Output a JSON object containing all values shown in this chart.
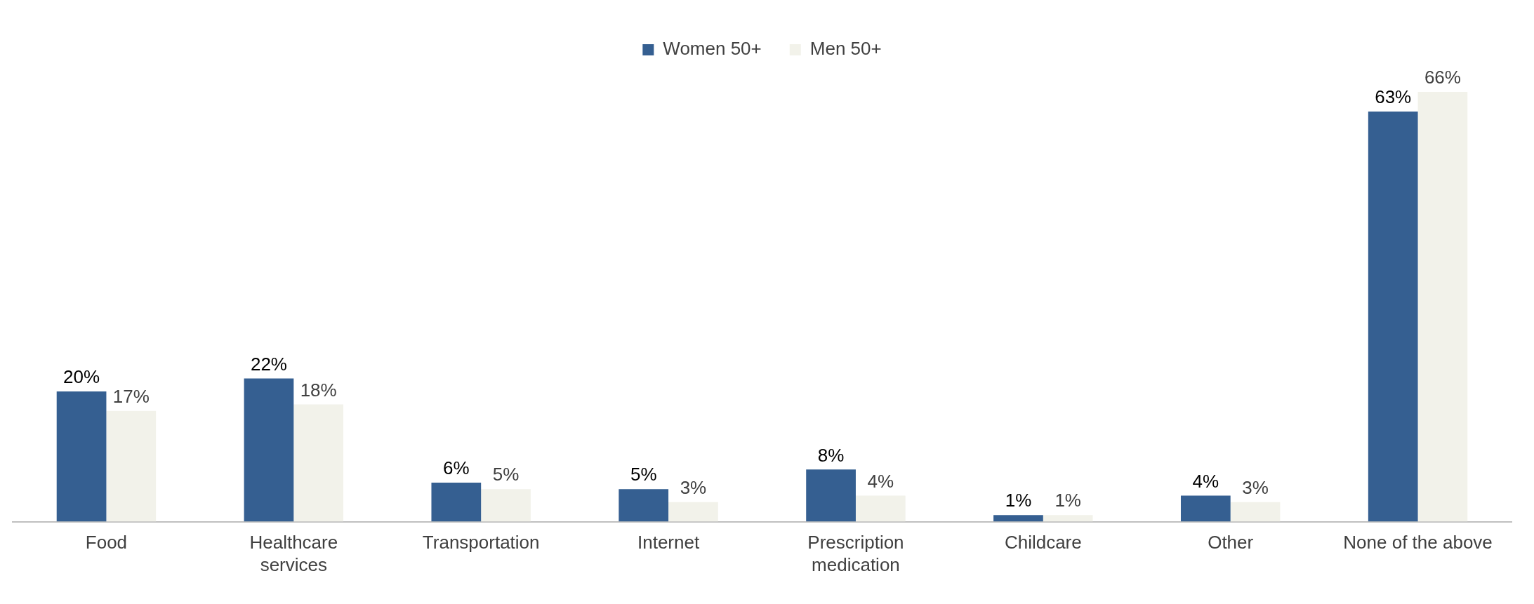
{
  "chart_data": {
    "type": "bar",
    "categories": [
      "Food",
      "Healthcare services",
      "Transportation",
      "Internet",
      "Prescription medication",
      "Childcare",
      "Other",
      "None of the above"
    ],
    "series": [
      {
        "name": "Women 50+",
        "color": "#355f91",
        "values": [
          20,
          22,
          6,
          5,
          8,
          1,
          4,
          63
        ],
        "value_labels": [
          "20%",
          "22%",
          "6%",
          "5%",
          "8%",
          "1%",
          "4%",
          "63%"
        ]
      },
      {
        "name": "Men 50+",
        "color": "#f2f2ea",
        "values": [
          17,
          18,
          5,
          3,
          4,
          1,
          3,
          66
        ],
        "value_labels": [
          "17%",
          "18%",
          "5%",
          "3%",
          "4%",
          "1%",
          "3%",
          "66%"
        ]
      }
    ],
    "legend": "top",
    "grid": false
  }
}
